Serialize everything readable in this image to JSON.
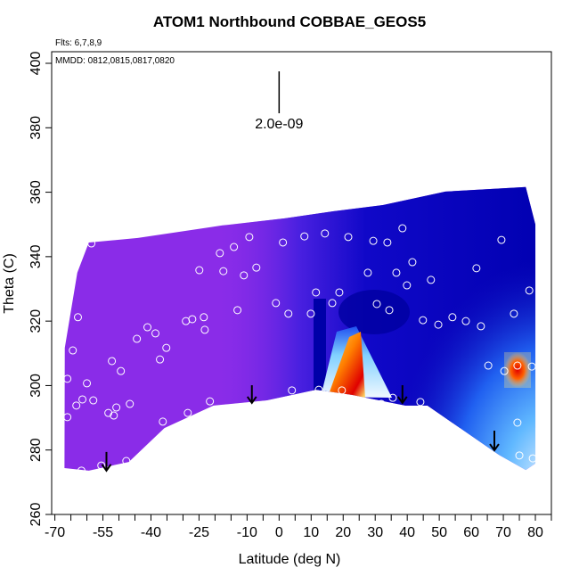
{
  "chart_data": {
    "type": "heatmap",
    "title": "ATOM1 Northbound COBBAE_GEOS5",
    "annotations": [
      "Flts: 6,7,8,9",
      "MMDD: 0812,0815,0817,0820"
    ],
    "xlabel": "Latitude (deg N)",
    "ylabel": "Theta (C)",
    "xlim": [
      -71,
      85
    ],
    "ylim": [
      260,
      403.6
    ],
    "xticks": [
      -70,
      -55,
      -40,
      -25,
      -10,
      0,
      10,
      20,
      30,
      40,
      50,
      60,
      70,
      80
    ],
    "x_minor_ticks": [
      -65,
      -60,
      -50,
      -45,
      -35,
      -30,
      -20,
      -15,
      -5,
      5,
      15,
      25,
      35,
      45,
      55,
      65,
      75,
      85
    ],
    "yticks": [
      260,
      280,
      300,
      320,
      340,
      360,
      380,
      400
    ],
    "color": "#8a2ce8",
    "domain": {
      "x": [
        -59.4,
        -63,
        -66.9,
        -67,
        -59.4,
        -46.9,
        -35.8,
        -20.5,
        -3.8,
        11.5,
        22.7,
        39.4,
        46.3,
        68.6,
        77,
        80,
        80,
        77,
        51.9,
        32.4,
        17.1,
        1.8,
        -17.7,
        -44.1
      ],
      "y": [
        344.4,
        335,
        311.7,
        274.4,
        273.6,
        276.3,
        286.8,
        293.8,
        295.4,
        298.7,
        297.1,
        293.8,
        293.8,
        278.5,
        273.8,
        275.8,
        350,
        361.6,
        360.2,
        356,
        354.1,
        351.9,
        349.7,
        345.8
      ]
    },
    "observations": {
      "x": [
        -58.6,
        -62.8,
        -64.4,
        -66.1,
        -66.1,
        -61.4,
        -58.0,
        -60.0,
        -51.6,
        -50.8,
        -46.6,
        -52.2,
        -49.4,
        -44.4,
        -41.1,
        -38.6,
        -35.2,
        -37.2,
        -36.3,
        -28.5,
        -29.1,
        -27.1,
        -23.5,
        -23.2,
        -21.6,
        -24.9,
        -17.4,
        -18.5,
        -14.1,
        -13.0,
        -9.3,
        -11.0,
        -7.1,
        -1.0,
        1.2,
        4.0,
        2.9,
        7.9,
        9.9,
        11.5,
        14.3,
        16.6,
        18.8,
        21.6,
        27.7,
        29.4,
        30.5,
        33.8,
        34.4,
        36.6,
        38.5,
        41.6,
        39.9,
        47.4,
        44.9,
        49.7,
        54.1,
        58.3,
        63.0,
        61.6,
        69.4,
        73.3,
        78.1,
        35.5,
        31.9,
        44.1,
        65.3,
        70.3,
        74.4,
        78.9,
        74.4,
        75.0,
        79.2,
        -61.7,
        -55.5,
        -47.7,
        12.4,
        19.6,
        -63.3,
        -53.3
      ],
      "y": [
        344.1,
        321.2,
        310.9,
        302.1,
        290.2,
        295.7,
        295.4,
        300.7,
        290.7,
        293.2,
        294.3,
        307.6,
        304.5,
        314.5,
        318.1,
        316.2,
        311.7,
        308.1,
        288.8,
        291.5,
        320.0,
        320.6,
        321.2,
        317.3,
        295.1,
        335.8,
        335.5,
        341.1,
        343.0,
        323.4,
        346.1,
        334.2,
        336.6,
        325.6,
        344.4,
        298.5,
        322.3,
        346.3,
        322.3,
        328.9,
        347.2,
        325.6,
        328.9,
        346.1,
        335.0,
        344.9,
        325.3,
        344.4,
        323.4,
        335.0,
        348.8,
        338.3,
        331.1,
        332.8,
        320.3,
        318.9,
        321.2,
        320.0,
        318.4,
        336.4,
        345.2,
        322.3,
        329.5,
        296.2,
        294.3,
        294.9,
        306.2,
        304.5,
        306.2,
        305.9,
        288.5,
        278.3,
        277.4,
        273.6,
        275.2,
        276.6,
        298.7,
        298.5,
        293.8,
        291.5
      ]
    },
    "arrows": {
      "x": [
        -53.9,
        -8.5,
        38.5,
        67.2
      ],
      "y_top": [
        279.4,
        300.1,
        300.1,
        286.0
      ],
      "y_bottom": [
        273.6,
        294.6,
        294.6,
        279.9
      ]
    },
    "scale_bar": {
      "value": 2e-09,
      "label": "2.0e-09",
      "x": 0,
      "y": [
        384.5,
        397.5
      ]
    }
  }
}
